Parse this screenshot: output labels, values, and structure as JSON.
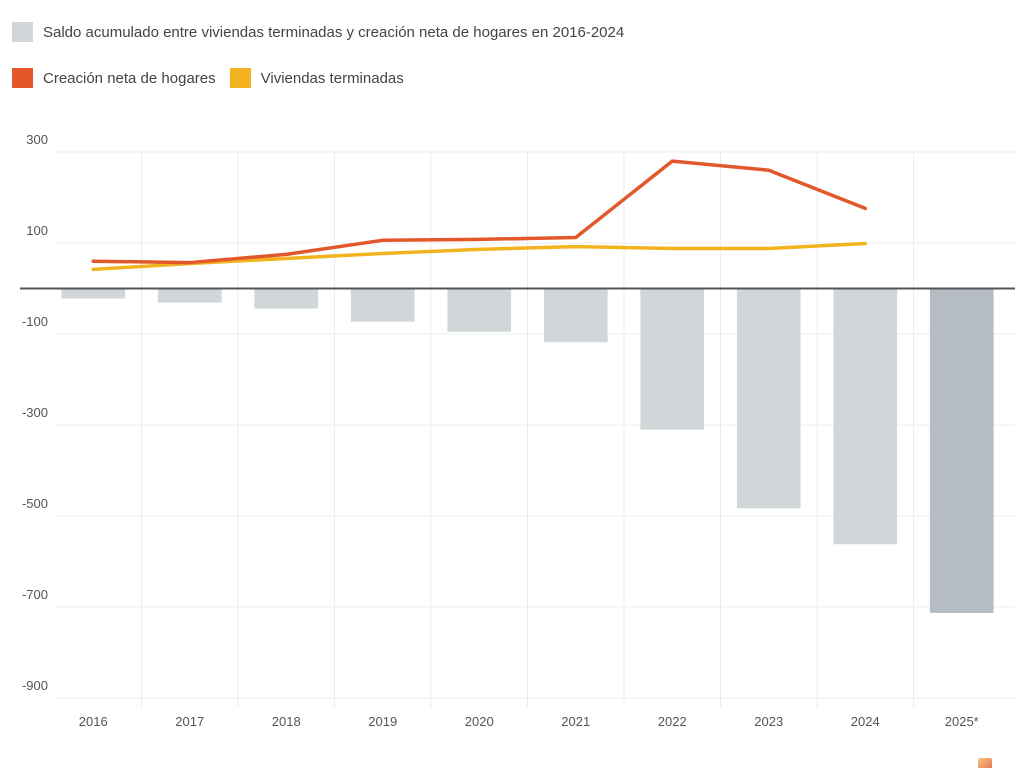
{
  "legend": {
    "bars_label": "Saldo acumulado entre viviendas terminadas y creación neta de hogares en 2016-2024",
    "line1_label": "Creación neta de hogares",
    "line2_label": "Viviendas terminadas"
  },
  "colors": {
    "bars": "#d1d6d8",
    "bars_projected": "#b6bcc3",
    "line1": "#e2582b",
    "line2": "#f2b31f",
    "grid": "#ececec",
    "zero_line": "#555555"
  },
  "chart_data": {
    "type": "bar+line",
    "categories": [
      "2016",
      "2017",
      "2018",
      "2019",
      "2020",
      "2021",
      "2022",
      "2023",
      "2024",
      "2025*"
    ],
    "series": [
      {
        "name": "Saldo acumulado entre viviendas terminadas y creación neta de hogares en 2016-2024",
        "type": "bar",
        "values": [
          -22,
          -31,
          -44,
          -73,
          -95,
          -118,
          -310,
          -483,
          -562,
          -713
        ]
      },
      {
        "name": "Creación neta de hogares",
        "type": "line",
        "values": [
          60,
          57,
          75,
          106,
          108,
          112,
          280,
          260,
          176,
          null
        ]
      },
      {
        "name": "Viviendas terminadas",
        "type": "line",
        "values": [
          42,
          55,
          66,
          77,
          86,
          92,
          88,
          88,
          99,
          null
        ]
      }
    ],
    "projected_categories": [
      "2025*"
    ],
    "yticks": [
      300,
      100,
      -100,
      -300,
      -500,
      -700,
      -900
    ],
    "ylim": [
      -920,
      310
    ],
    "grid": true,
    "legend_position": "top-left",
    "title": "",
    "xlabel": "",
    "ylabel": ""
  }
}
